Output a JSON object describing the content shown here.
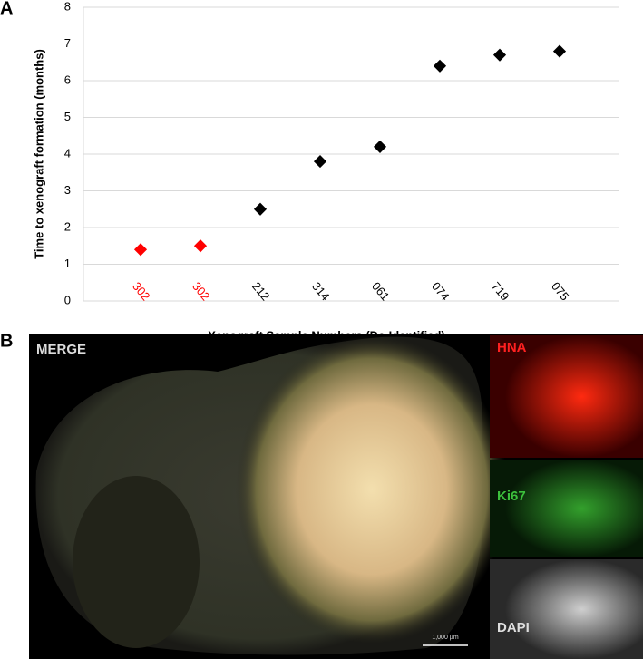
{
  "chart_data": {
    "type": "scatter",
    "y_label": "Time to xenograft formation (months)",
    "x_label": "Xenograft Sample Numbers (De-Identified)",
    "categories": [
      "302",
      "302",
      "212",
      "314",
      "061",
      "074",
      "719",
      "075"
    ],
    "values": [
      1.4,
      1.5,
      2.5,
      3.8,
      4.2,
      6.4,
      6.7,
      6.8
    ],
    "colors": [
      "#ff0000",
      "#ff0000",
      "#000000",
      "#000000",
      "#000000",
      "#000000",
      "#000000",
      "#000000"
    ],
    "ylim": [
      0,
      8
    ],
    "yticks": [
      0,
      1,
      2,
      3,
      4,
      5,
      6,
      7,
      8
    ],
    "grid": true
  },
  "panel_labels": [
    "A",
    "B"
  ],
  "image_panel": {
    "labels": [
      "MERGE",
      "HNA",
      "Ki67",
      "DAPI"
    ],
    "scale_bar": "1,000 µm"
  }
}
